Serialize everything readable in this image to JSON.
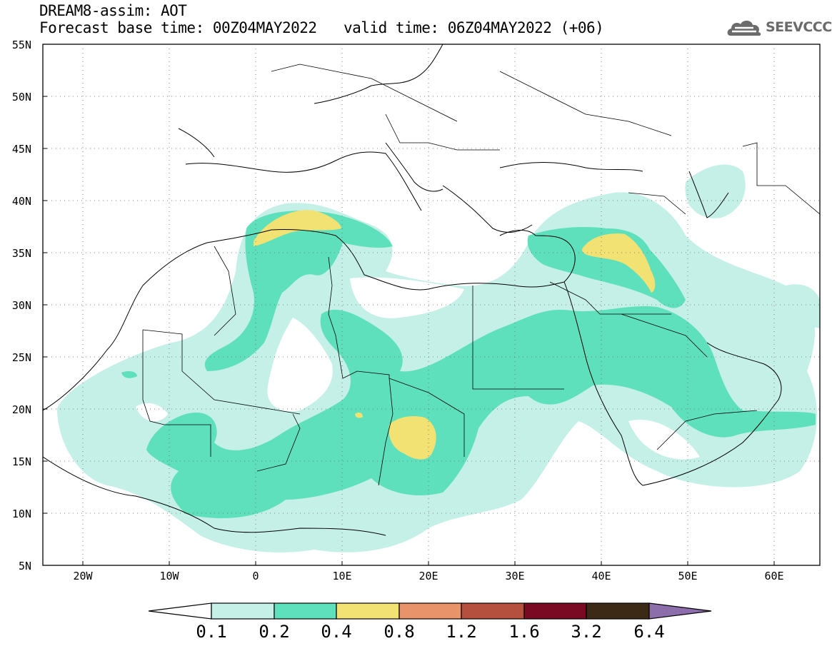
{
  "title": {
    "line1": "DREAM8-assim: AOT",
    "base_time": "Forecast base time: 00Z04MAY2022",
    "valid_time": "valid time: 06Z04MAY2022 (+06)"
  },
  "logo": {
    "text": "SEEVCCC",
    "icon": "cloud-icon"
  },
  "axes": {
    "lat_labels": [
      "55N",
      "50N",
      "45N",
      "40N",
      "35N",
      "30N",
      "25N",
      "20N",
      "15N",
      "10N",
      "5N"
    ],
    "lon_labels": [
      "20W",
      "10W",
      "0",
      "10E",
      "20E",
      "30E",
      "40E",
      "50E",
      "60E"
    ]
  },
  "colorbar": {
    "labels": [
      "0.1",
      "0.2",
      "0.4",
      "0.8",
      "1.2",
      "1.6",
      "3.2",
      "6.4"
    ],
    "colors": [
      "#ffffff",
      "#c5f0e8",
      "#5ee0bc",
      "#f2e173",
      "#e8936a",
      "#b5503f",
      "#7a0a24",
      "#3d2a16",
      "#8c6eaa"
    ]
  },
  "map": {
    "land_color": "#ffffff",
    "border_color": "#000000"
  }
}
